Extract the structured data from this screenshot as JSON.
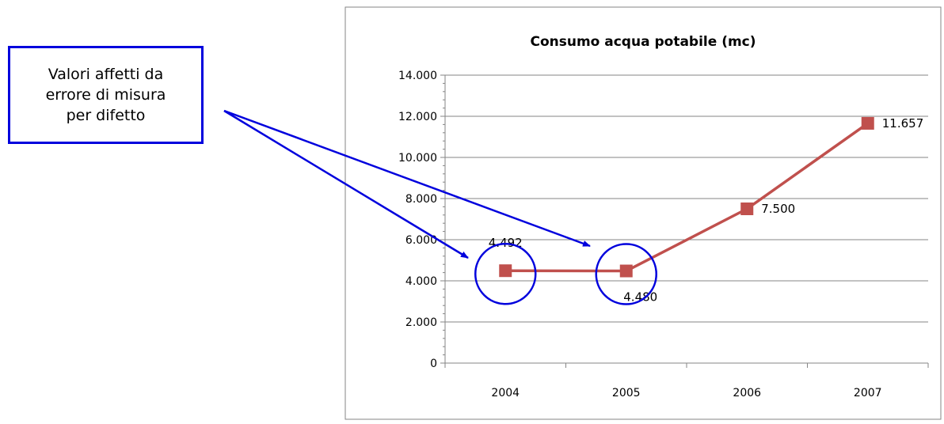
{
  "chart_data": {
    "type": "line",
    "title": "Consumo acqua potabile (mc)",
    "categories": [
      "2004",
      "2005",
      "2006",
      "2007"
    ],
    "values": [
      4492,
      4480,
      7500,
      11657
    ],
    "data_labels": [
      "4.492",
      "4.480",
      "7.500",
      "11.657"
    ],
    "y_ticks": [
      "0",
      "2.000",
      "4.000",
      "6.000",
      "8.000",
      "10.000",
      "12.000",
      "14.000"
    ],
    "ylim": [
      0,
      14000
    ],
    "y_tick_step": 2000,
    "grid": true,
    "legend": "none",
    "series_color": "#c0504d"
  },
  "annotation": {
    "lines": [
      "Valori affetti da",
      "errore di misura",
      "per difetto"
    ],
    "color": "#0000dd",
    "highlighted_categories": [
      "2004",
      "2005"
    ]
  }
}
